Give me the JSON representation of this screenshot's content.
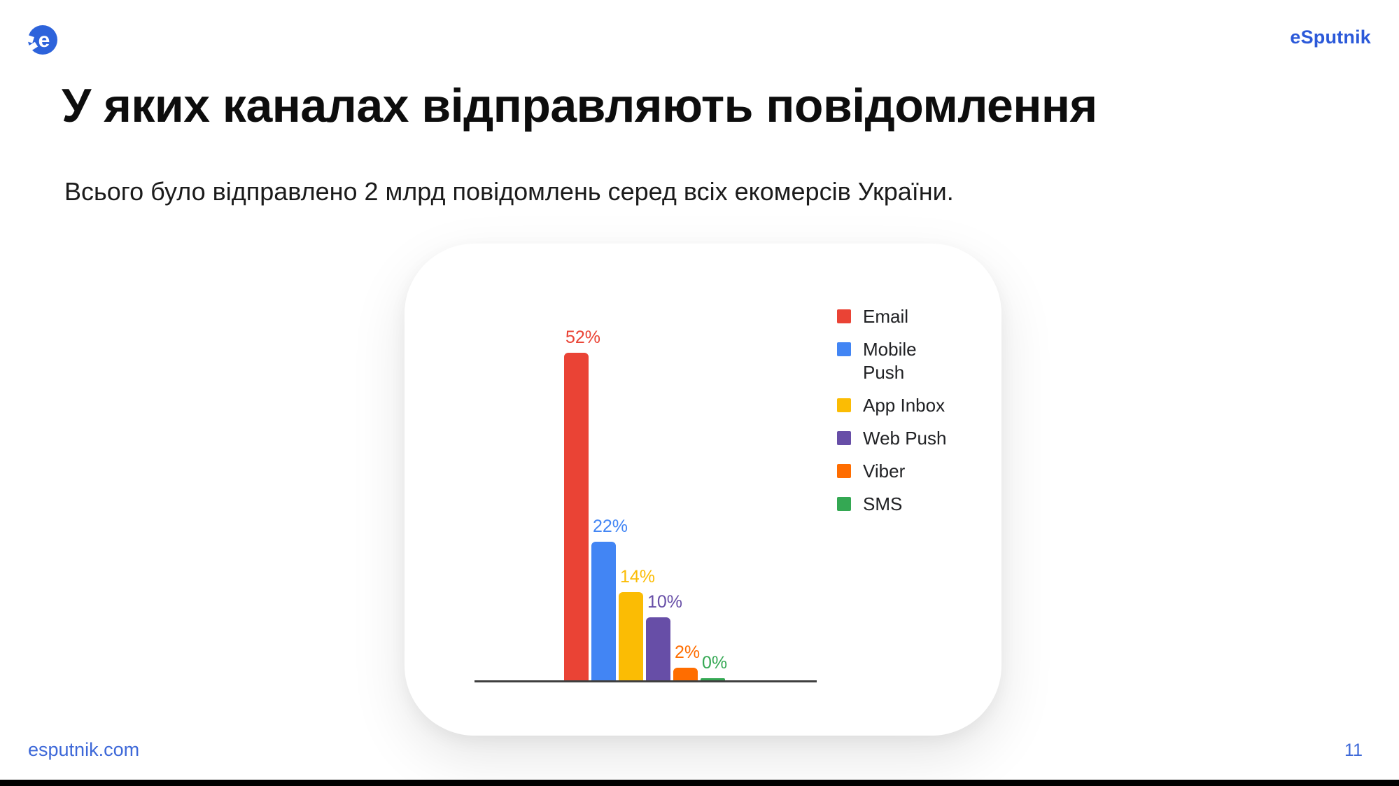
{
  "header": {
    "brand": "eSputnik",
    "logo": {
      "letter": "e",
      "color": "#2D63DB"
    }
  },
  "title": "У яких каналах відправляють повідомлення",
  "subtitle": "Всього було відправлено 2 млрд повідомлень серед всіх екомерсів України.",
  "chart_data": {
    "type": "bar",
    "title": "",
    "xlabel": "",
    "ylabel": "",
    "unit": "%",
    "ylim": [
      0,
      57
    ],
    "grid": false,
    "legend_position": "right",
    "categories": [
      "Email",
      "Mobile Push",
      "App Inbox",
      "Web Push",
      "Viber",
      "SMS"
    ],
    "values": [
      52,
      22,
      14,
      10,
      2,
      0
    ],
    "value_labels": [
      "52%",
      "22%",
      "14%",
      "10%",
      "2%",
      "0%"
    ],
    "bar_colors": [
      "#EA4335",
      "#4285F4",
      "#FBBC04",
      "#674EA7",
      "#FF6D00",
      "#34A853"
    ],
    "legend": [
      {
        "name": "Email",
        "lines": [
          "Email"
        ],
        "color": "#EA4335"
      },
      {
        "name": "Mobile Push",
        "lines": [
          "Mobile",
          "Push"
        ],
        "color": "#4285F4"
      },
      {
        "name": "App Inbox",
        "lines": [
          "App Inbox"
        ],
        "color": "#FBBC04"
      },
      {
        "name": "Web Push",
        "lines": [
          "Web Push"
        ],
        "color": "#674EA7"
      },
      {
        "name": "Viber",
        "lines": [
          "Viber"
        ],
        "color": "#FF6D00"
      },
      {
        "name": "SMS",
        "lines": [
          "SMS"
        ],
        "color": "#34A853"
      }
    ]
  },
  "footer": {
    "site": "esputnik.com",
    "page_number": "11"
  }
}
